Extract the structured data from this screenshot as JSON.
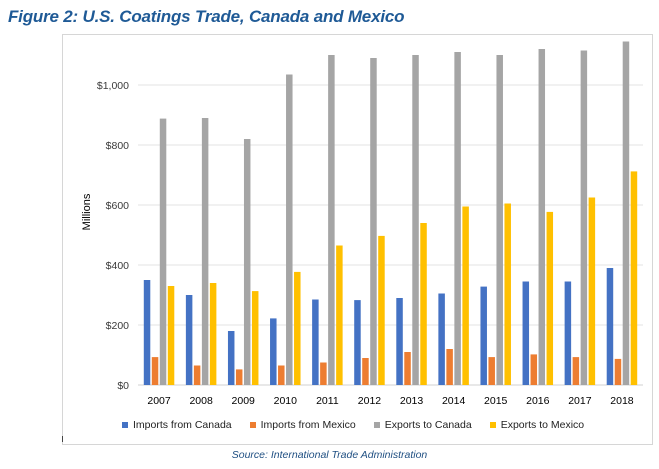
{
  "title": "Figure 2: U.S. Coatings Trade, Canada and Mexico",
  "source": "Source: International Trade Administration",
  "chart_data": {
    "type": "bar",
    "title": "Figure 2: U.S. Coatings Trade, Canada and Mexico",
    "xlabel": "",
    "ylabel": "Millions",
    "ylim": [
      0,
      1150
    ],
    "yticks": [
      0,
      200,
      400,
      600,
      800,
      1000
    ],
    "ytick_labels": [
      "$0",
      "$200",
      "$400",
      "$600",
      "$800",
      "$1,000"
    ],
    "grid": true,
    "legend_position": "bottom",
    "categories": [
      "2007",
      "2008",
      "2009",
      "2010",
      "2011",
      "2012",
      "2013",
      "2014",
      "2015",
      "2016",
      "2017",
      "2018"
    ],
    "series": [
      {
        "name": "Imports from Canada",
        "color": "#4472c4",
        "values": [
          350,
          300,
          180,
          222,
          285,
          283,
          290,
          305,
          328,
          345,
          345,
          390
        ]
      },
      {
        "name": "Imports from Mexico",
        "color": "#ed7d31",
        "values": [
          93,
          65,
          52,
          65,
          75,
          90,
          110,
          120,
          93,
          102,
          93,
          87
        ]
      },
      {
        "name": "Exports to Canada",
        "color": "#a5a5a5",
        "values": [
          888,
          890,
          820,
          1035,
          1100,
          1090,
          1100,
          1110,
          1100,
          1120,
          1115,
          1145
        ]
      },
      {
        "name": "Exports to Mexico",
        "color": "#ffc000",
        "values": [
          330,
          340,
          313,
          377,
          465,
          497,
          540,
          595,
          605,
          577,
          625,
          712
        ]
      }
    ]
  }
}
